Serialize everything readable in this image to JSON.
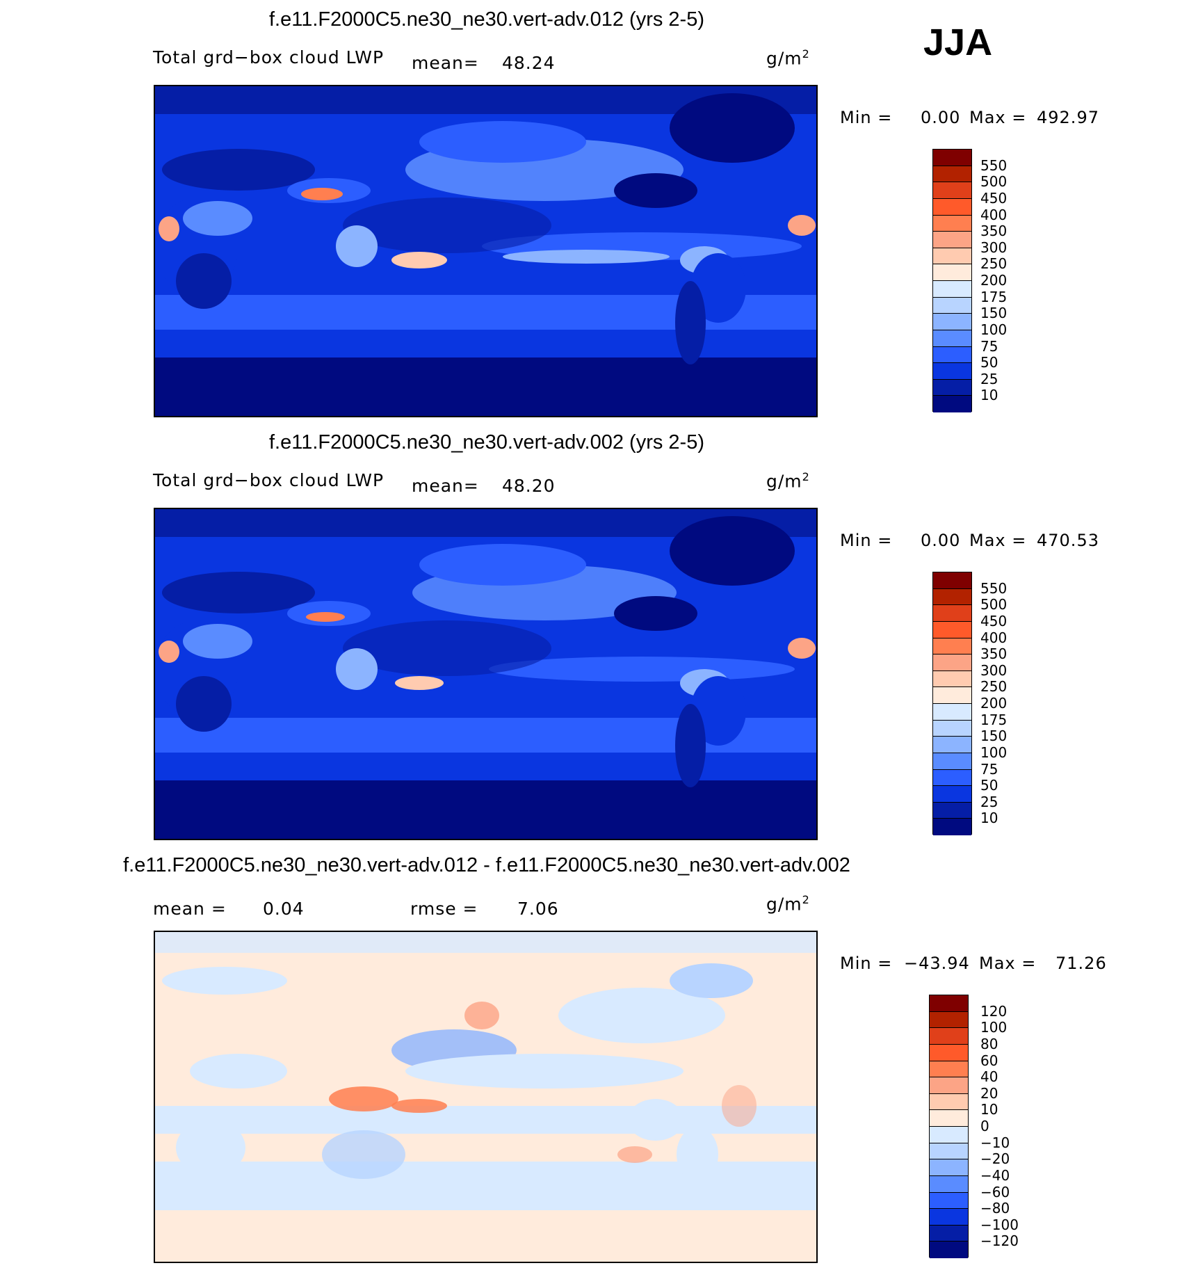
{
  "season": "JJA",
  "panels": [
    {
      "title": "f.e11.F2000C5.ne30_ne30.vert-adv.012 (yrs 2-5)",
      "variable": "Total grd−box cloud LWP",
      "mean_label": "mean=",
      "mean_value": "48.24",
      "units": "g/m",
      "units_exp": "2",
      "min_label": "Min =",
      "min_value": "0.00",
      "max_label": "Max =",
      "max_value": "492.97",
      "colorbar_labels": [
        "550",
        "500",
        "450",
        "400",
        "350",
        "300",
        "250",
        "200",
        "175",
        "150",
        "100",
        "75",
        "50",
        "25",
        "10"
      ]
    },
    {
      "title": "f.e11.F2000C5.ne30_ne30.vert-adv.002 (yrs 2-5)",
      "variable": "Total grd−box cloud LWP",
      "mean_label": "mean=",
      "mean_value": "48.20",
      "units": "g/m",
      "units_exp": "2",
      "min_label": "Min =",
      "min_value": "0.00",
      "max_label": "Max =",
      "max_value": "470.53",
      "colorbar_labels": [
        "550",
        "500",
        "450",
        "400",
        "350",
        "300",
        "250",
        "200",
        "175",
        "150",
        "100",
        "75",
        "50",
        "25",
        "10"
      ]
    },
    {
      "title": "f.e11.F2000C5.ne30_ne30.vert-adv.012 - f.e11.F2000C5.ne30_ne30.vert-adv.002",
      "mean_label": "mean =",
      "mean_value": "0.04",
      "rmse_label": "rmse =",
      "rmse_value": "7.06",
      "units": "g/m",
      "units_exp": "2",
      "min_label": "Min =",
      "min_value": "−43.94",
      "max_label": "Max =",
      "max_value": "71.26",
      "colorbar_labels": [
        "120",
        "100",
        "80",
        "60",
        "40",
        "20",
        "10",
        "0",
        "−10",
        "−20",
        "−40",
        "−60",
        "−80",
        "−100",
        "−120"
      ]
    }
  ],
  "colors": {
    "abs_scale": [
      "#7f0000",
      "#b22200",
      "#e0401a",
      "#ff5a2a",
      "#ff7f50",
      "#fca486",
      "#ffcbb0",
      "#ffebdc",
      "#d8eaff",
      "#b8d4ff",
      "#8cb4ff",
      "#5a8cff",
      "#2c5eff",
      "#0a36e0",
      "#051ea6",
      "#000a80"
    ],
    "diff_scale": [
      "#7f0000",
      "#b22200",
      "#e0401a",
      "#ff5a2a",
      "#ff7f50",
      "#fca486",
      "#ffcbb0",
      "#ffebdc",
      "#d8eaff",
      "#b8d4ff",
      "#8cb4ff",
      "#5a8cff",
      "#2c5eff",
      "#0a36e0",
      "#051ea6",
      "#000a80"
    ]
  }
}
